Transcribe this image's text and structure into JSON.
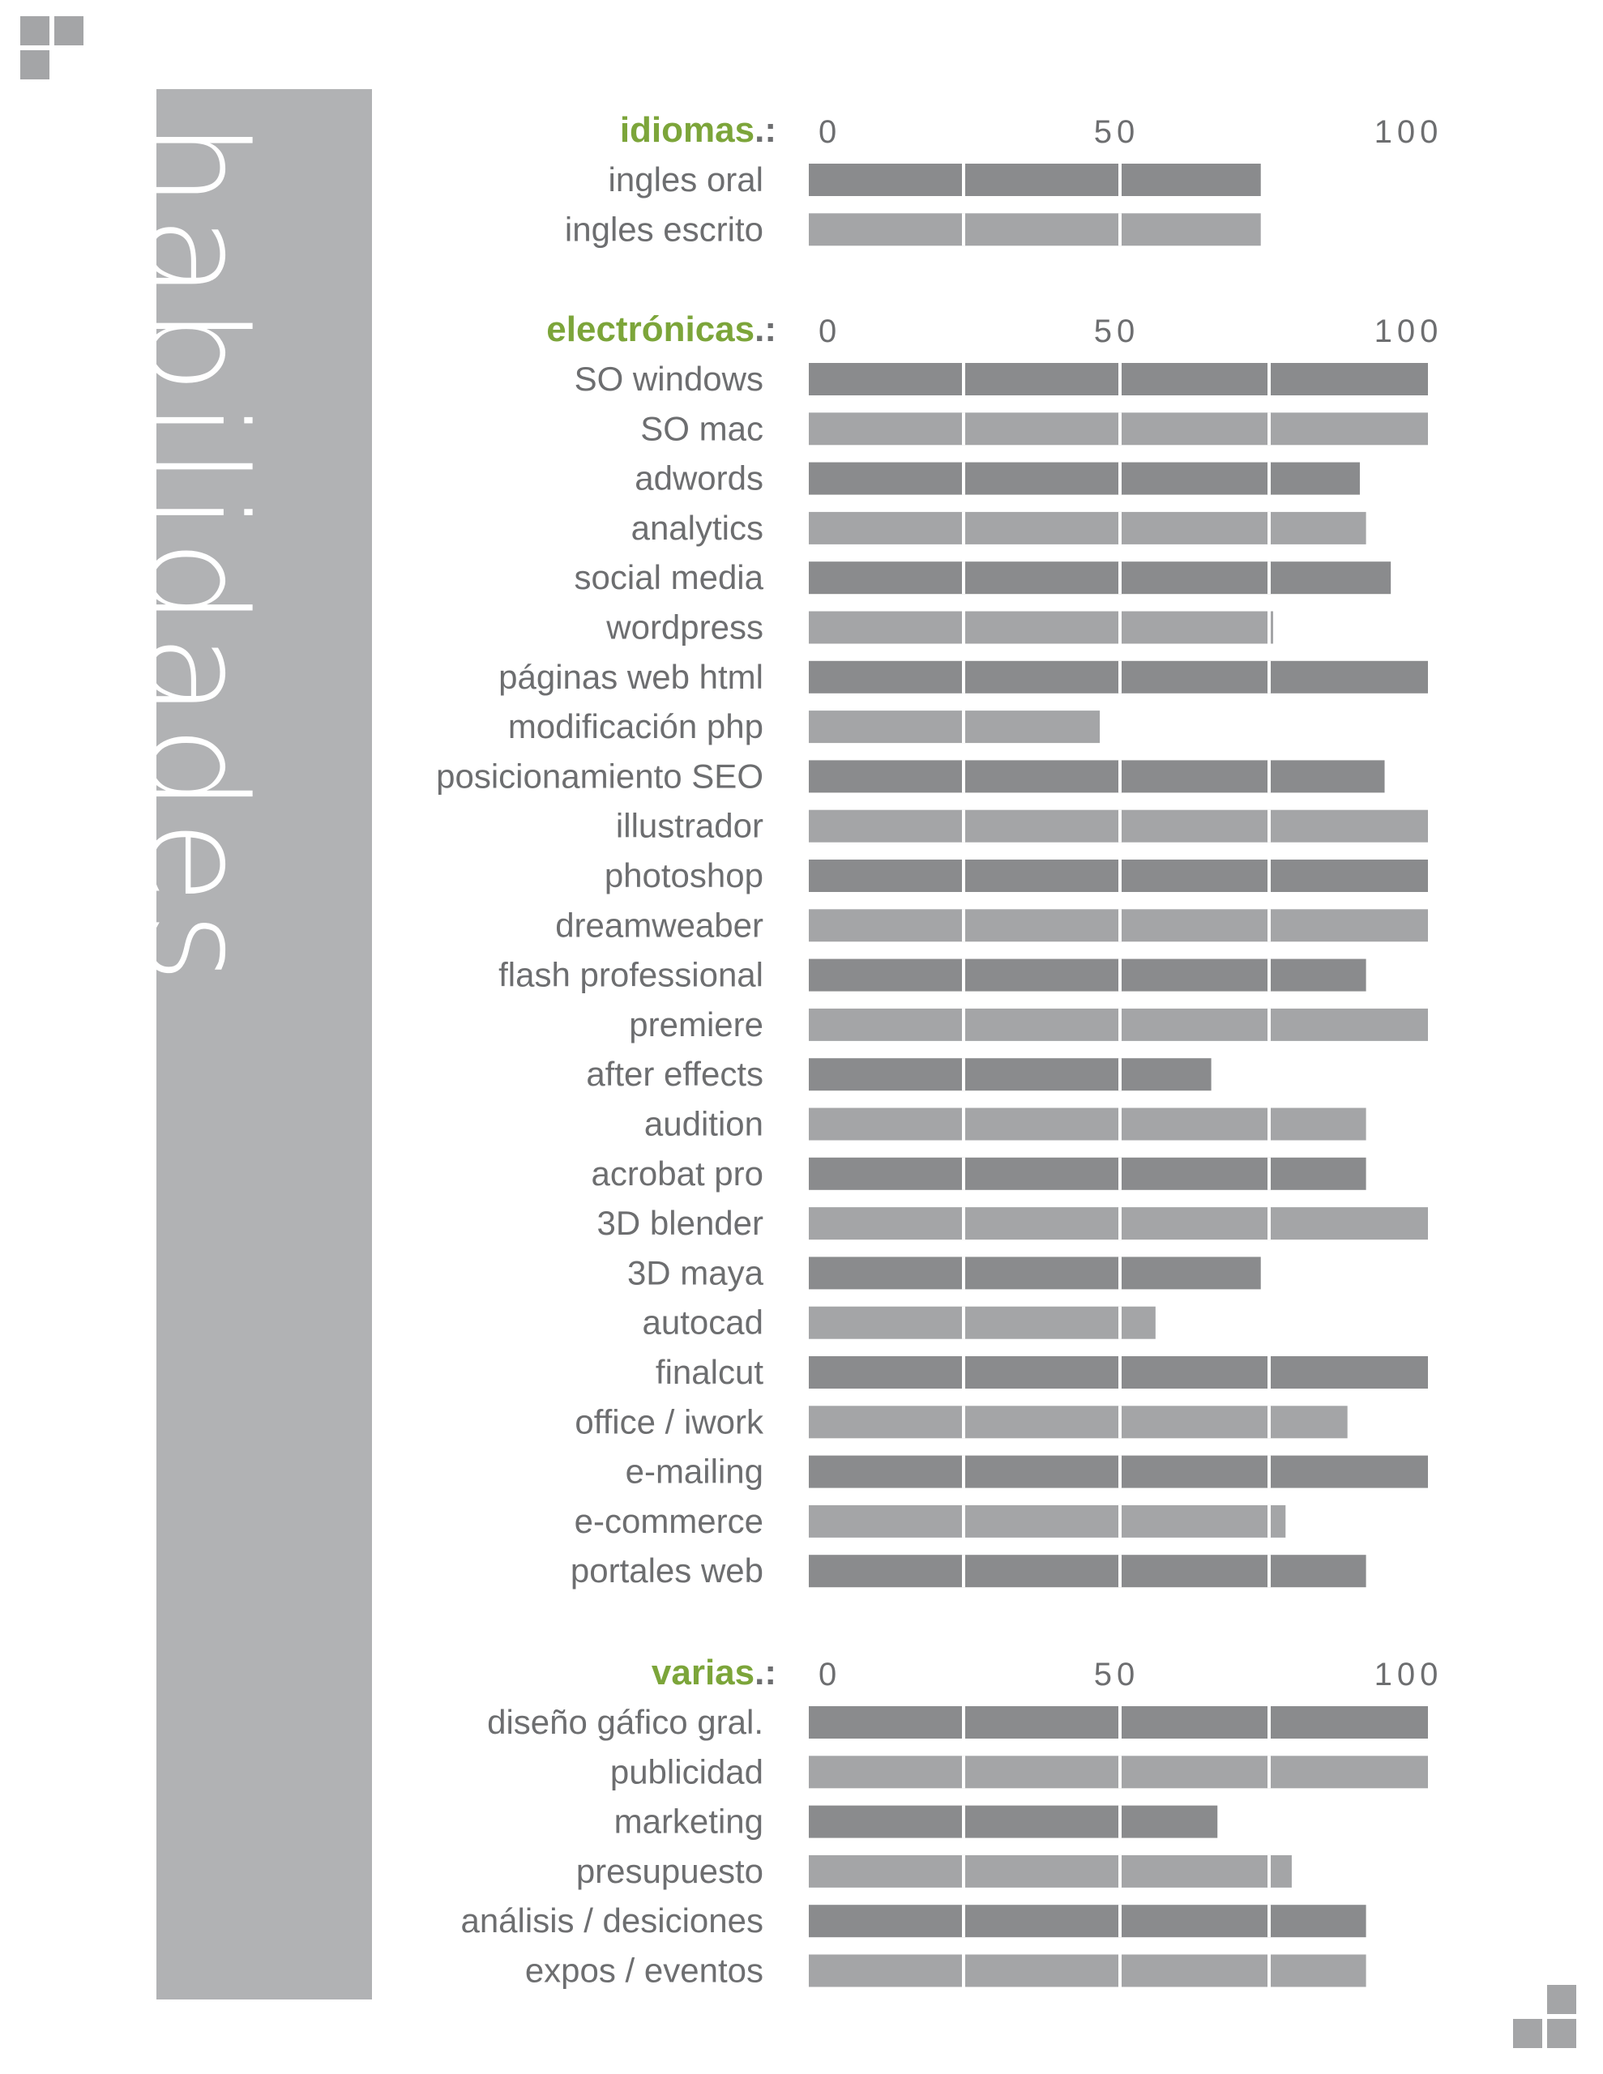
{
  "page": {
    "side_title": "habilidades",
    "colors": {
      "accent": "#7ca53a",
      "label": "#6d6e70",
      "bar_dark": "#8a8b8d",
      "bar_light": "#a4a5a7",
      "panel": "#b1b2b4",
      "corner": "#a4a5a7"
    },
    "corner_icons": [
      "grid-squares-icon",
      "grid-squares-icon"
    ]
  },
  "chart_data": [
    {
      "type": "bar",
      "orientation": "horizontal",
      "title": "idiomas",
      "title_suffix": ".:",
      "xlim": [
        0,
        100
      ],
      "ticks": [
        "0",
        "50",
        "100"
      ],
      "categories": [
        "ingles oral",
        "ingles escrito"
      ],
      "values": [
        73,
        73
      ]
    },
    {
      "type": "bar",
      "orientation": "horizontal",
      "title": "electrónicas",
      "title_suffix": ".:",
      "xlim": [
        0,
        100
      ],
      "ticks": [
        "0",
        "50",
        "100"
      ],
      "categories": [
        "SO windows",
        "SO mac",
        "adwords",
        "analytics",
        "social media",
        "wordpress",
        "páginas web html",
        "modificación php",
        "posicionamiento SEO",
        "illustrador",
        "photoshop",
        "dreamweaber",
        "flash professional",
        "premiere",
        "after effects",
        "audition",
        "acrobat pro",
        "3D blender",
        "3D maya",
        "autocad",
        "finalcut",
        "office / iwork",
        "e-mailing",
        "e-commerce",
        "portales web"
      ],
      "values": [
        100,
        100,
        89,
        90,
        94,
        75,
        100,
        47,
        93,
        100,
        100,
        100,
        90,
        100,
        65,
        90,
        90,
        100,
        73,
        56,
        100,
        87,
        100,
        77,
        90
      ]
    },
    {
      "type": "bar",
      "orientation": "horizontal",
      "title": "varias",
      "title_suffix": ".:",
      "xlim": [
        0,
        100
      ],
      "ticks": [
        "0",
        "50",
        "100"
      ],
      "categories": [
        "diseño gáfico gral.",
        "publicidad",
        "marketing",
        "presupuesto",
        "análisis / desiciones",
        "expos / eventos"
      ],
      "values": [
        100,
        100,
        66,
        78,
        90,
        90
      ]
    }
  ]
}
